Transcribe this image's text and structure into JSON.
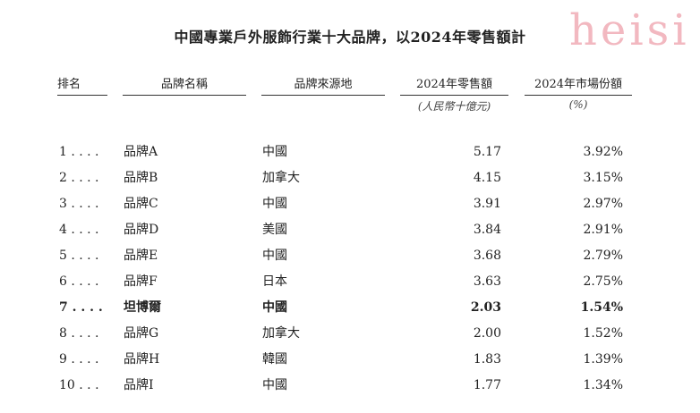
{
  "title": "中國專業戶外服飾行業十大品牌，以2024年零售額計",
  "headers": [
    "排名",
    "品牌名稱",
    "品牌來源地",
    "2024年零售額",
    "2024年市場份額"
  ],
  "subheaders": {
    "sales": "(人民幣十億元)",
    "share": "(%)"
  },
  "rows": [
    {
      "rank": "1 . . . .",
      "brand": "品牌A",
      "origin": "中國",
      "sales": "5.17",
      "share": "3.92%",
      "bold": false
    },
    {
      "rank": "2 . . . .",
      "brand": "品牌B",
      "origin": "加拿大",
      "sales": "4.15",
      "share": "3.15%",
      "bold": false
    },
    {
      "rank": "3 . . . .",
      "brand": "品牌C",
      "origin": "中國",
      "sales": "3.91",
      "share": "2.97%",
      "bold": false
    },
    {
      "rank": "4 . . . .",
      "brand": "品牌D",
      "origin": "美國",
      "sales": "3.84",
      "share": "2.91%",
      "bold": false
    },
    {
      "rank": "5 . . . .",
      "brand": "品牌E",
      "origin": "中國",
      "sales": "3.68",
      "share": "2.79%",
      "bold": false
    },
    {
      "rank": "6 . . . .",
      "brand": "品牌F",
      "origin": "日本",
      "sales": "3.63",
      "share": "2.75%",
      "bold": false
    },
    {
      "rank": "7 . . . .",
      "brand": "坦博爾",
      "origin": "中國",
      "sales": "2.03",
      "share": "1.54%",
      "bold": true
    },
    {
      "rank": "8 . . . .",
      "brand": "品牌G",
      "origin": "加拿大",
      "sales": "2.00",
      "share": "1.52%",
      "bold": false
    },
    {
      "rank": "9 . . . .",
      "brand": "品牌H",
      "origin": "韓國",
      "sales": "1.83",
      "share": "1.39%",
      "bold": false
    },
    {
      "rank": "10 . . .",
      "brand": "品牌I",
      "origin": "中國",
      "sales": "1.77",
      "share": "1.34%",
      "bold": false
    }
  ],
  "watermark": "heisi",
  "colors": {
    "watermark": "#f2b8c0"
  }
}
